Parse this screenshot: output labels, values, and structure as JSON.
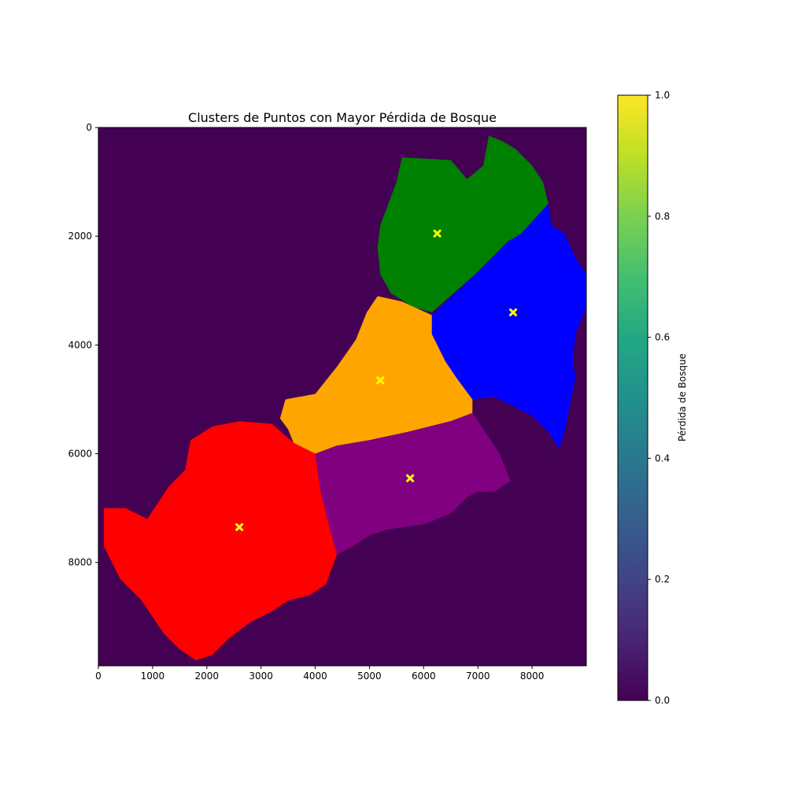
{
  "chart_data": {
    "type": "heatmap",
    "title": "Clusters de Puntos con Mayor Pérdida de Bosque",
    "xlabel": "",
    "ylabel": "",
    "xlim": [
      0,
      9000
    ],
    "ylim": [
      9900,
      0
    ],
    "x_ticks": [
      "0",
      "1000",
      "2000",
      "3000",
      "4000",
      "5000",
      "6000",
      "7000",
      "8000"
    ],
    "y_ticks": [
      "0",
      "2000",
      "4000",
      "6000",
      "8000"
    ],
    "background_value": 0.0,
    "colorbar": {
      "label": "Pérdida de Bosque",
      "colormap": "viridis",
      "range": [
        0.0,
        1.0
      ],
      "ticks": [
        "0.0",
        "0.2",
        "0.4",
        "0.6",
        "0.8",
        "1.0"
      ]
    },
    "clusters": [
      {
        "color": "#008000",
        "centroid": [
          6250,
          1950
        ],
        "outline": [
          [
            5500,
            1000
          ],
          [
            5600,
            550
          ],
          [
            6500,
            600
          ],
          [
            6800,
            950
          ],
          [
            7100,
            700
          ],
          [
            7200,
            150
          ],
          [
            7450,
            250
          ],
          [
            7700,
            400
          ],
          [
            8000,
            700
          ],
          [
            8200,
            1000
          ],
          [
            8300,
            1400
          ],
          [
            7800,
            1950
          ],
          [
            7550,
            2100
          ],
          [
            6950,
            2700
          ],
          [
            6150,
            3400
          ],
          [
            5800,
            3300
          ],
          [
            5400,
            3050
          ],
          [
            5200,
            2700
          ],
          [
            5150,
            2200
          ],
          [
            5200,
            1800
          ]
        ]
      },
      {
        "color": "#0000ff",
        "centroid": [
          7650,
          3400
        ],
        "outline": [
          [
            8300,
            1400
          ],
          [
            8350,
            1800
          ],
          [
            8600,
            1950
          ],
          [
            8800,
            2400
          ],
          [
            9000,
            2700
          ],
          [
            9000,
            3300
          ],
          [
            8800,
            3800
          ],
          [
            8750,
            4300
          ],
          [
            8800,
            4600
          ],
          [
            8700,
            5100
          ],
          [
            8600,
            5600
          ],
          [
            8500,
            5900
          ],
          [
            8300,
            5600
          ],
          [
            8000,
            5300
          ],
          [
            7600,
            5100
          ],
          [
            7300,
            4950
          ],
          [
            6900,
            5000
          ],
          [
            6600,
            4600
          ],
          [
            6400,
            4300
          ],
          [
            6150,
            3800
          ],
          [
            6150,
            3450
          ],
          [
            6950,
            2700
          ],
          [
            7550,
            2100
          ],
          [
            7800,
            1950
          ]
        ]
      },
      {
        "color": "#ffa500",
        "centroid": [
          5200,
          4650
        ],
        "outline": [
          [
            5150,
            3100
          ],
          [
            5600,
            3200
          ],
          [
            6150,
            3450
          ],
          [
            6150,
            3800
          ],
          [
            6400,
            4300
          ],
          [
            6600,
            4600
          ],
          [
            6900,
            5000
          ],
          [
            6900,
            5250
          ],
          [
            6500,
            5400
          ],
          [
            5700,
            5600
          ],
          [
            5000,
            5750
          ],
          [
            4400,
            5850
          ],
          [
            4000,
            6000
          ],
          [
            3600,
            5800
          ],
          [
            3500,
            5550
          ],
          [
            3350,
            5350
          ],
          [
            3450,
            5000
          ],
          [
            4000,
            4900
          ],
          [
            4400,
            4400
          ],
          [
            4750,
            3900
          ],
          [
            4950,
            3400
          ]
        ]
      },
      {
        "color": "#800080",
        "centroid": [
          5750,
          6450
        ],
        "outline": [
          [
            4000,
            6000
          ],
          [
            4400,
            5850
          ],
          [
            5000,
            5750
          ],
          [
            5700,
            5600
          ],
          [
            6500,
            5400
          ],
          [
            6900,
            5250
          ],
          [
            7200,
            5700
          ],
          [
            7400,
            6000
          ],
          [
            7600,
            6500
          ],
          [
            7300,
            6700
          ],
          [
            7000,
            6700
          ],
          [
            6800,
            6800
          ],
          [
            6500,
            7100
          ],
          [
            6000,
            7300
          ],
          [
            5600,
            7350
          ],
          [
            5300,
            7400
          ],
          [
            5000,
            7500
          ],
          [
            4700,
            7700
          ],
          [
            4400,
            7850
          ],
          [
            4250,
            7300
          ],
          [
            4100,
            6700
          ]
        ]
      },
      {
        "color": "#ff0000",
        "centroid": [
          2600,
          7350
        ],
        "outline": [
          [
            1700,
            5750
          ],
          [
            2100,
            5500
          ],
          [
            2600,
            5400
          ],
          [
            3200,
            5450
          ],
          [
            3600,
            5800
          ],
          [
            4000,
            6000
          ],
          [
            4100,
            6700
          ],
          [
            4250,
            7300
          ],
          [
            4400,
            7850
          ],
          [
            4200,
            8400
          ],
          [
            3900,
            8600
          ],
          [
            3500,
            8700
          ],
          [
            3200,
            8900
          ],
          [
            2800,
            9100
          ],
          [
            2400,
            9400
          ],
          [
            2100,
            9700
          ],
          [
            1800,
            9800
          ],
          [
            1500,
            9600
          ],
          [
            1200,
            9300
          ],
          [
            800,
            8700
          ],
          [
            400,
            8300
          ],
          [
            100,
            7700
          ],
          [
            100,
            7000
          ],
          [
            500,
            7000
          ],
          [
            900,
            7200
          ],
          [
            1300,
            6600
          ],
          [
            1600,
            6300
          ]
        ]
      }
    ]
  }
}
